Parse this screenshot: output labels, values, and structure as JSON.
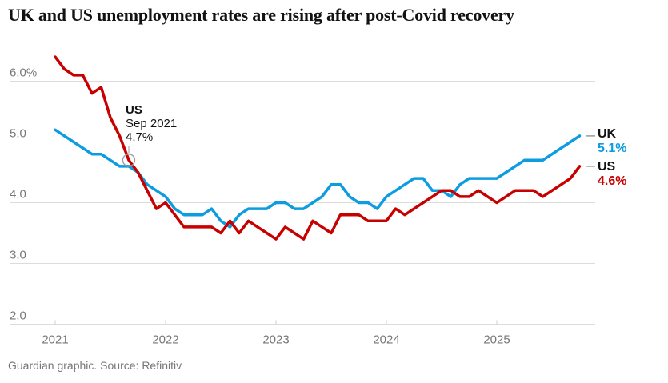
{
  "title": "UK and US unemployment rates are rising after post-Covid recovery",
  "source": "Guardian graphic. Source: Refinitiv",
  "colors": {
    "uk": "#0d9ce0",
    "us": "#c70000",
    "grid": "#dcdcdc",
    "tick": "#cccccc",
    "axis_text": "#767676",
    "annotation_gray": "#9b9b9b",
    "label_text": "#121212"
  },
  "annotation": {
    "series": "US",
    "date": "Sep 2021",
    "value": "4.7%"
  },
  "end_labels": {
    "uk": {
      "name": "UK",
      "value": "5.1%"
    },
    "us": {
      "name": "US",
      "value": "4.6%"
    }
  },
  "chart_data": {
    "type": "line",
    "title": "UK and US unemployment rates are rising after post-Covid recovery",
    "x_unit": "month",
    "x_start": "Jan 2021",
    "x_end": "Oct 2025",
    "ylim": [
      2.0,
      6.5
    ],
    "grid": true,
    "y_ticks": [
      {
        "value": 6.0,
        "label": "6.0%"
      },
      {
        "value": 5.0,
        "label": "5.0"
      },
      {
        "value": 4.0,
        "label": "4.0"
      },
      {
        "value": 3.0,
        "label": "3.0"
      },
      {
        "value": 2.0,
        "label": "2.0"
      }
    ],
    "x_ticks": [
      {
        "label": "2021",
        "month_index": 0
      },
      {
        "label": "2022",
        "month_index": 12
      },
      {
        "label": "2023",
        "month_index": 24
      },
      {
        "label": "2024",
        "month_index": 36
      },
      {
        "label": "2025",
        "month_index": 48
      }
    ],
    "series": [
      {
        "id": "uk",
        "name": "UK",
        "color": "#0d9ce0",
        "end_value_label": "5.1%",
        "values": [
          5.2,
          5.1,
          5.0,
          4.9,
          4.8,
          4.8,
          4.7,
          4.6,
          4.6,
          4.5,
          4.3,
          4.2,
          4.1,
          3.9,
          3.8,
          3.8,
          3.8,
          3.9,
          3.7,
          3.6,
          3.8,
          3.9,
          3.9,
          3.9,
          4.0,
          4.0,
          3.9,
          3.9,
          4.0,
          4.1,
          4.3,
          4.3,
          4.1,
          4.0,
          4.0,
          3.9,
          4.1,
          4.2,
          4.3,
          4.4,
          4.4,
          4.2,
          4.2,
          4.1,
          4.3,
          4.4,
          4.4,
          4.4,
          4.4,
          4.5,
          4.6,
          4.7,
          4.7,
          4.7,
          4.8,
          4.9,
          5.0,
          5.1
        ]
      },
      {
        "id": "us",
        "name": "US",
        "color": "#c70000",
        "end_value_label": "4.6%",
        "values": [
          6.4,
          6.2,
          6.1,
          6.1,
          5.8,
          5.9,
          5.4,
          5.1,
          4.7,
          4.5,
          4.2,
          3.9,
          4.0,
          3.8,
          3.6,
          3.6,
          3.6,
          3.6,
          3.5,
          3.7,
          3.5,
          3.7,
          3.6,
          3.5,
          3.4,
          3.6,
          3.5,
          3.4,
          3.7,
          3.6,
          3.5,
          3.8,
          3.8,
          3.8,
          3.7,
          3.7,
          3.7,
          3.9,
          3.8,
          3.9,
          4.0,
          4.1,
          4.2,
          4.2,
          4.1,
          4.1,
          4.2,
          4.1,
          4.0,
          4.1,
          4.2,
          4.2,
          4.2,
          4.1,
          4.2,
          4.3,
          4.4,
          4.6
        ]
      }
    ],
    "annotation_point": {
      "series": "us",
      "month_index": 8,
      "value": 4.7,
      "label": "US",
      "date": "Sep 2021",
      "value_label": "4.7%"
    }
  }
}
